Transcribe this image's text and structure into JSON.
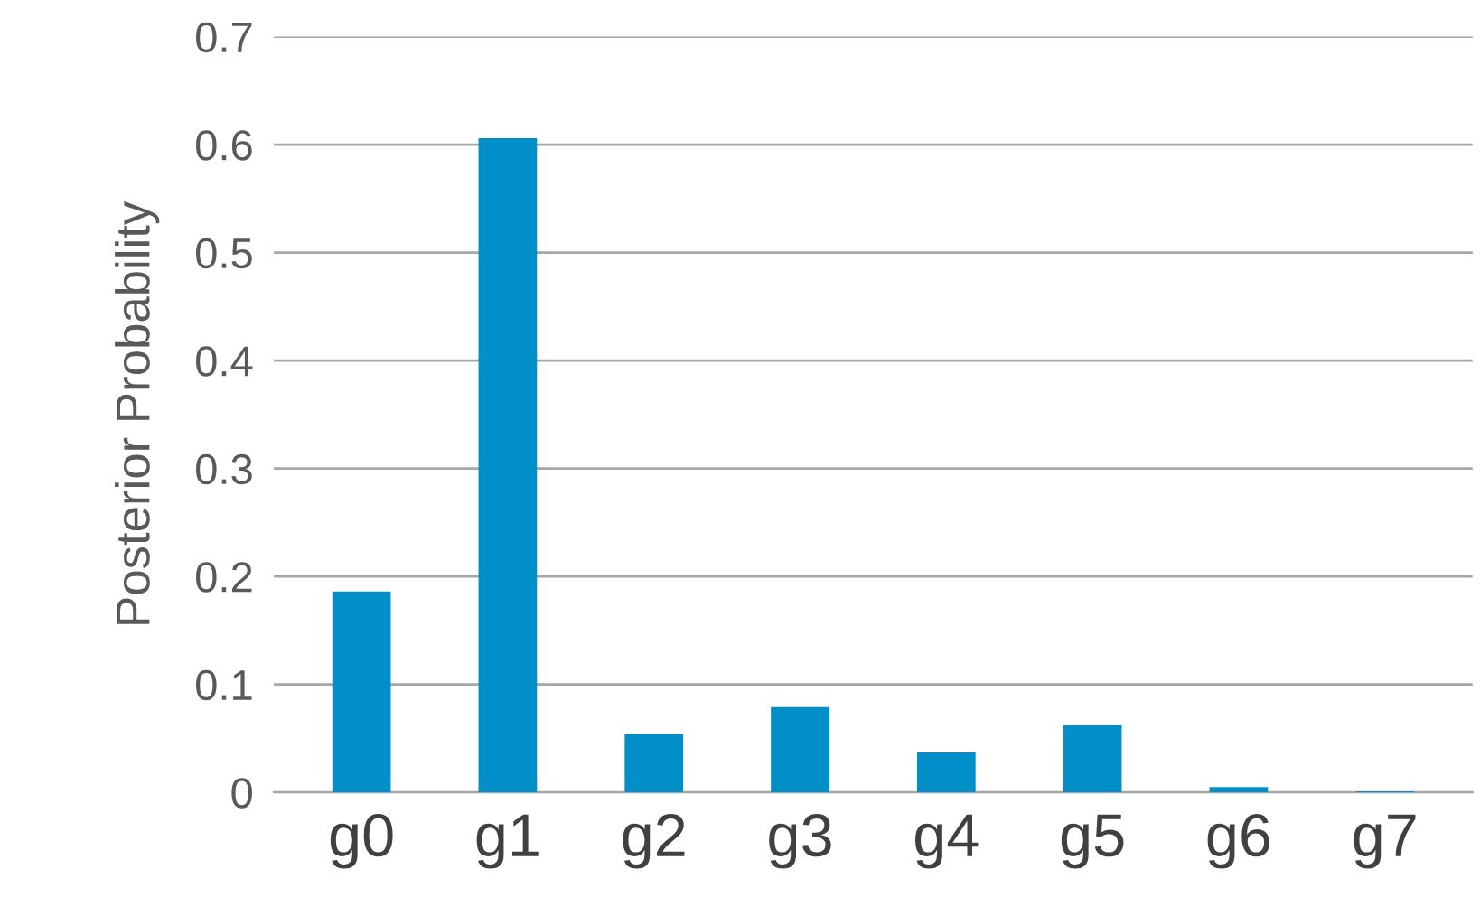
{
  "chart_data": {
    "type": "bar",
    "ylabel": "Posterior Probability",
    "categories": [
      "g0",
      "g1",
      "g2",
      "g3",
      "g4",
      "g5",
      "g6",
      "g7"
    ],
    "values": [
      0.186,
      0.606,
      0.054,
      0.079,
      0.037,
      0.062,
      0.005,
      0.001
    ],
    "color": "#008fc8",
    "ylim": [
      0,
      0.7
    ],
    "yticks": [
      0,
      0.1,
      0.2,
      0.3,
      0.4,
      0.5,
      0.6,
      0.7
    ],
    "grid": "y",
    "legend": false
  }
}
